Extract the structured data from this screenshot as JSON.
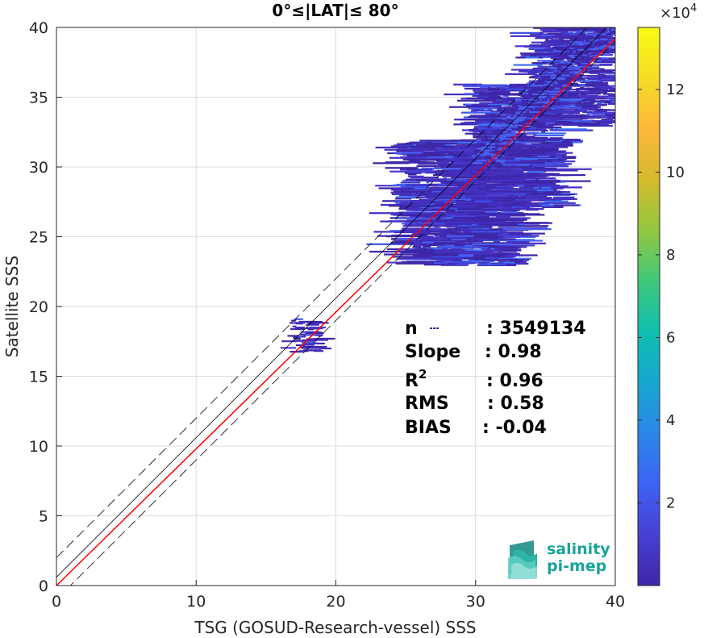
{
  "chart_data": {
    "type": "heatmap",
    "title": "0°≤|LAT|≤ 80°",
    "xlabel": "TSG (GOSUD-Research-vessel) SSS",
    "ylabel": "Satellite SSS",
    "xlim": [
      0,
      40
    ],
    "ylim": [
      0,
      40
    ],
    "xticks": [
      "0",
      "10",
      "20",
      "30",
      "40"
    ],
    "yticks": [
      "0",
      "5",
      "10",
      "15",
      "20",
      "25",
      "30",
      "35",
      "40"
    ],
    "grid": true,
    "colorbar": {
      "label_exponent": "×10",
      "exponent_sup": "4",
      "range": [
        0,
        13.5
      ],
      "ticks": [
        "2",
        "4",
        "6",
        "8",
        "10",
        "12"
      ],
      "tick_values": [
        2,
        4,
        6,
        8,
        10,
        12
      ],
      "colormap": [
        "#3e26a8",
        "#4840d3",
        "#3d63f3",
        "#2b87e8",
        "#17a7cf",
        "#10bfb0",
        "#3fc87c",
        "#92c740",
        "#d4bb2c",
        "#fdb83c",
        "#f5dc26",
        "#f9fb15"
      ]
    },
    "lines": [
      {
        "name": "identity",
        "color": "#000000",
        "style": "solid",
        "slope": 1,
        "intercept": 0.6
      },
      {
        "name": "identity-upper",
        "color": "#000000",
        "style": "dashed",
        "slope": 1,
        "intercept": 2.0
      },
      {
        "name": "identity-lower",
        "color": "#000000",
        "style": "dashed",
        "slope": 1,
        "intercept": -1.0
      },
      {
        "name": "fit",
        "color": "#ff0000",
        "style": "solid",
        "slope": 0.98,
        "intercept": 0.0
      }
    ],
    "density_regions": [
      {
        "x": [
          34,
          40
        ],
        "y": [
          33,
          40.5
        ],
        "spread": 2.2
      },
      {
        "x": [
          30,
          36
        ],
        "y": [
          27,
          36
        ],
        "spread": 3.0
      },
      {
        "x": [
          25,
          33
        ],
        "y": [
          23,
          32
        ],
        "spread": 3.5
      },
      {
        "x": [
          17,
          19
        ],
        "y": [
          16.8,
          19.2
        ],
        "spread": 1.2
      }
    ],
    "stats": [
      {
        "label": "n",
        "value": ": 3549134"
      },
      {
        "label": "Slope",
        "value": ": 0.98"
      },
      {
        "label": "R",
        "sup": "2",
        "value": ": 0.96"
      },
      {
        "label": "RMS",
        "value": ": 0.58"
      },
      {
        "label": "BIAS",
        "value": ": -0.04"
      }
    ]
  },
  "logo": {
    "line1": "salinity",
    "line2": "pi-mep"
  }
}
